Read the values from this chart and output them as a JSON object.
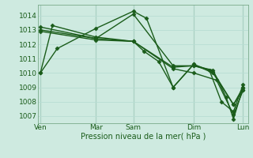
{
  "background_color": "#ceeae0",
  "plot_bg_color": "#ceeae0",
  "grid_color_minor": "#b8ddd4",
  "grid_color_major": "#a0c8bc",
  "line_color": "#1a5c1a",
  "marker_color": "#1a5c1a",
  "xlabel": "Pression niveau de la mer( hPa )",
  "ylim": [
    1006.5,
    1014.75
  ],
  "xlim": [
    -0.1,
    8.6
  ],
  "yticks": [
    1007,
    1008,
    1009,
    1010,
    1011,
    1012,
    1013,
    1014
  ],
  "xtick_positions": [
    0.0,
    2.3,
    3.85,
    6.35,
    8.4
  ],
  "xtick_labels": [
    "Ven",
    "Mar",
    "Sam",
    "Dim",
    "Lun"
  ],
  "vlines": [
    0.0,
    2.3,
    3.85,
    6.35,
    8.4
  ],
  "lines": [
    {
      "x": [
        0.0,
        0.7,
        2.3,
        3.85,
        4.4,
        5.5,
        6.35,
        7.15,
        8.0,
        8.4
      ],
      "y": [
        1010.0,
        1011.7,
        1013.1,
        1014.3,
        1013.8,
        1009.0,
        1010.6,
        1010.1,
        1007.8,
        1009.0
      ],
      "marker": "D",
      "markersize": 2.5,
      "linewidth": 1.0
    },
    {
      "x": [
        0.0,
        0.5,
        2.3,
        3.85,
        4.3,
        4.9,
        5.5,
        6.35,
        7.15,
        8.0,
        8.4
      ],
      "y": [
        1010.0,
        1013.3,
        1012.5,
        1012.2,
        1011.5,
        1010.8,
        1009.0,
        1010.6,
        1010.0,
        1007.8,
        1008.8
      ],
      "marker": "D",
      "markersize": 2.5,
      "linewidth": 1.0
    },
    {
      "x": [
        0.0,
        2.3,
        3.85,
        5.5,
        6.35,
        7.15,
        7.7,
        8.0,
        8.4
      ],
      "y": [
        1012.9,
        1012.3,
        1012.2,
        1010.4,
        1010.5,
        1010.2,
        1008.3,
        1006.8,
        1009.0
      ],
      "marker": "D",
      "markersize": 2.5,
      "linewidth": 1.0
    },
    {
      "x": [
        0.0,
        2.3,
        3.85,
        5.5,
        6.35,
        7.3,
        8.0,
        8.4
      ],
      "y": [
        1013.2,
        1012.4,
        1012.2,
        1010.3,
        1010.0,
        1009.5,
        1007.1,
        1008.8
      ],
      "marker": "D",
      "markersize": 2.5,
      "linewidth": 1.0
    },
    {
      "x": [
        0.0,
        2.3,
        3.85,
        5.5,
        6.35,
        7.0,
        7.5,
        8.0,
        8.4
      ],
      "y": [
        1013.0,
        1012.4,
        1014.1,
        1010.5,
        1010.5,
        1010.2,
        1008.0,
        1007.3,
        1009.2
      ],
      "marker": "D",
      "markersize": 2.5,
      "linewidth": 1.0
    }
  ]
}
